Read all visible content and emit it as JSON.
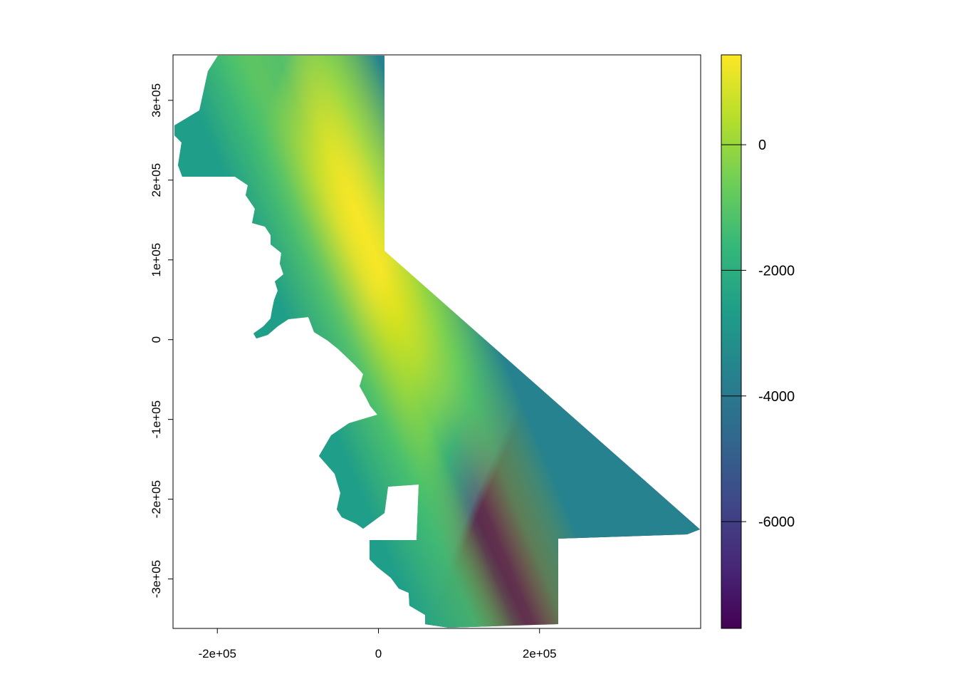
{
  "chart_data": {
    "type": "heatmap",
    "title": "",
    "xlabel": "",
    "ylabel": "",
    "x_range": [
      -255000,
      400000
    ],
    "y_range": [
      -362000,
      357000
    ],
    "x_ticks": [
      {
        "value": -200000,
        "label": "-2e+05"
      },
      {
        "value": 0,
        "label": "0"
      },
      {
        "value": 200000,
        "label": "2e+05"
      }
    ],
    "y_ticks": [
      {
        "value": -300000,
        "label": "-3e+05"
      },
      {
        "value": -200000,
        "label": "-2e+05"
      },
      {
        "value": -100000,
        "label": "-1e+05"
      },
      {
        "value": 0,
        "label": "0"
      },
      {
        "value": 100000,
        "label": "1e+05"
      },
      {
        "value": 200000,
        "label": "2e+05"
      },
      {
        "value": 300000,
        "label": "3e+05"
      }
    ],
    "colorbar": {
      "palette": "viridis",
      "range": [
        -7700,
        1430
      ],
      "ticks": [
        {
          "value": 0,
          "label": "0"
        },
        {
          "value": -2000,
          "label": "-2000"
        },
        {
          "value": -4000,
          "label": "-4000"
        },
        {
          "value": -6000,
          "label": "-6000"
        }
      ],
      "colors": [
        "#440154",
        "#482878",
        "#3e4989",
        "#31688e",
        "#26828e",
        "#1f9e89",
        "#35b779",
        "#6ece58",
        "#b5de2b",
        "#fde725"
      ]
    }
  }
}
